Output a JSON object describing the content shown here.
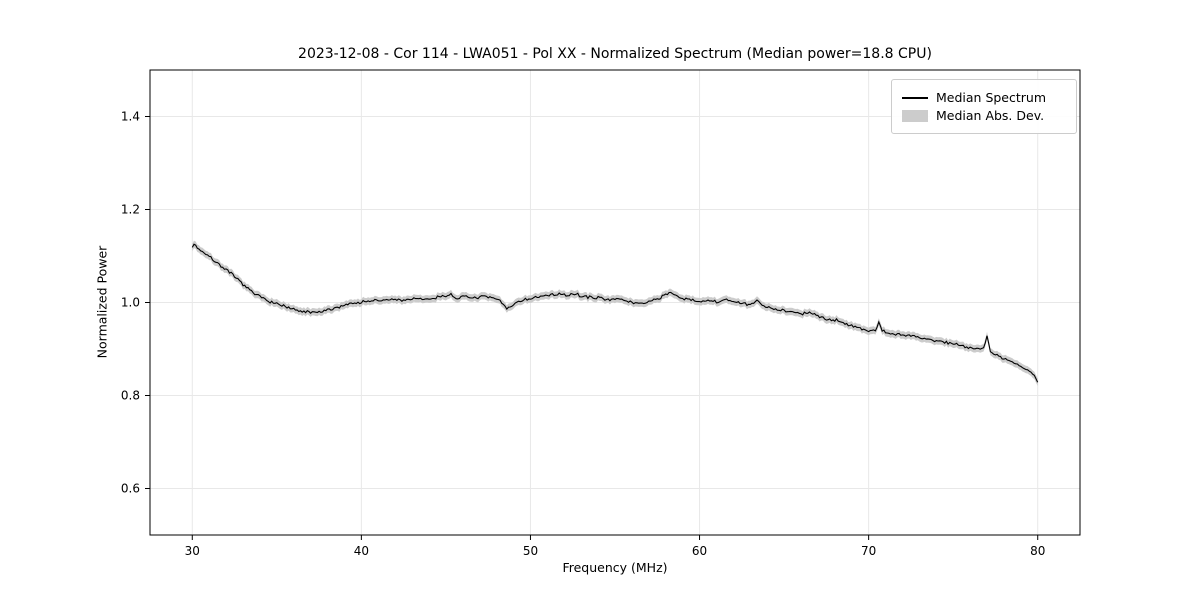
{
  "chart_data": {
    "type": "line",
    "title": "2023-12-08 - Cor 114 - LWA051 - Pol XX - Normalized Spectrum (Median power=18.8 CPU)",
    "xlabel": "Frequency (MHz)",
    "ylabel": "Normalized Power",
    "xlim": [
      27.5,
      82.5
    ],
    "ylim": [
      0.5,
      1.5
    ],
    "grid": true,
    "legend_position": "upper right",
    "legend_entries": [
      "Median Spectrum",
      "Median Abs. Dev."
    ],
    "xticks": [
      {
        "v": 30,
        "label": "30"
      },
      {
        "v": 40,
        "label": "40"
      },
      {
        "v": 50,
        "label": "50"
      },
      {
        "v": 60,
        "label": "60"
      },
      {
        "v": 70,
        "label": "70"
      },
      {
        "v": 80,
        "label": "80"
      }
    ],
    "yticks": [
      {
        "v": 0.6,
        "label": "0.6"
      },
      {
        "v": 0.8,
        "label": "0.8"
      },
      {
        "v": 1.0,
        "label": "1.0"
      },
      {
        "v": 1.2,
        "label": "1.2"
      },
      {
        "v": 1.4,
        "label": "1.4"
      }
    ],
    "colors": {
      "line": "#000000",
      "band": "#cccccc",
      "grid": "#e8e8e8",
      "axes": "#000000",
      "tick": "#000000"
    },
    "noise_amplitude": 0.005,
    "noise_seed": 7,
    "sample_step": 0.1,
    "band_halfwidth": 0.008,
    "series": [
      {
        "name": "Median Spectrum",
        "points": [
          [
            30.0,
            1.12
          ],
          [
            30.15,
            1.127
          ],
          [
            30.3,
            1.118
          ],
          [
            30.5,
            1.112
          ],
          [
            30.8,
            1.105
          ],
          [
            31.0,
            1.098
          ],
          [
            31.3,
            1.09
          ],
          [
            31.6,
            1.082
          ],
          [
            32.0,
            1.07
          ],
          [
            32.4,
            1.058
          ],
          [
            32.8,
            1.046
          ],
          [
            33.1,
            1.036
          ],
          [
            33.4,
            1.026
          ],
          [
            33.7,
            1.018
          ],
          [
            34.0,
            1.012
          ],
          [
            34.3,
            1.008
          ],
          [
            34.6,
            1.003
          ],
          [
            35.0,
            0.997
          ],
          [
            35.4,
            0.992
          ],
          [
            35.8,
            0.987
          ],
          [
            36.2,
            0.982
          ],
          [
            36.6,
            0.98
          ],
          [
            37.0,
            0.978
          ],
          [
            37.4,
            0.979
          ],
          [
            37.8,
            0.981
          ],
          [
            38.2,
            0.985
          ],
          [
            38.6,
            0.99
          ],
          [
            39.0,
            0.995
          ],
          [
            39.4,
            0.998
          ],
          [
            39.8,
            1.0
          ],
          [
            40.2,
            1.002
          ],
          [
            40.6,
            1.004
          ],
          [
            41.0,
            1.003
          ],
          [
            41.5,
            1.006
          ],
          [
            42.0,
            1.006
          ],
          [
            42.5,
            1.005
          ],
          [
            43.0,
            1.008
          ],
          [
            43.5,
            1.006
          ],
          [
            44.0,
            1.008
          ],
          [
            44.5,
            1.011
          ],
          [
            45.0,
            1.015
          ],
          [
            45.3,
            1.017
          ],
          [
            45.6,
            1.01
          ],
          [
            46.0,
            1.012
          ],
          [
            46.5,
            1.01
          ],
          [
            47.0,
            1.012
          ],
          [
            47.5,
            1.011
          ],
          [
            48.0,
            1.007
          ],
          [
            48.3,
            1.0
          ],
          [
            48.6,
            0.987
          ],
          [
            48.9,
            0.993
          ],
          [
            49.2,
            1.001
          ],
          [
            49.6,
            1.006
          ],
          [
            50.0,
            1.008
          ],
          [
            50.5,
            1.012
          ],
          [
            51.0,
            1.015
          ],
          [
            51.5,
            1.018
          ],
          [
            52.0,
            1.015
          ],
          [
            52.4,
            1.018
          ],
          [
            52.8,
            1.016
          ],
          [
            53.2,
            1.013
          ],
          [
            53.6,
            1.011
          ],
          [
            54.0,
            1.01
          ],
          [
            54.5,
            1.008
          ],
          [
            55.0,
            1.008
          ],
          [
            55.5,
            1.004
          ],
          [
            56.0,
            1.0
          ],
          [
            56.5,
            0.998
          ],
          [
            57.0,
            1.002
          ],
          [
            57.5,
            1.008
          ],
          [
            58.0,
            1.017
          ],
          [
            58.3,
            1.02
          ],
          [
            58.7,
            1.012
          ],
          [
            59.0,
            1.008
          ],
          [
            59.5,
            1.005
          ],
          [
            60.0,
            1.003
          ],
          [
            60.5,
            1.004
          ],
          [
            61.0,
            1.0
          ],
          [
            61.5,
            1.006
          ],
          [
            62.0,
            1.003
          ],
          [
            62.5,
            0.998
          ],
          [
            63.0,
            0.994
          ],
          [
            63.4,
            1.004
          ],
          [
            63.7,
            0.994
          ],
          [
            64.0,
            0.99
          ],
          [
            64.5,
            0.986
          ],
          [
            65.0,
            0.983
          ],
          [
            65.5,
            0.98
          ],
          [
            66.0,
            0.975
          ],
          [
            66.4,
            0.978
          ],
          [
            66.8,
            0.973
          ],
          [
            67.2,
            0.969
          ],
          [
            67.6,
            0.965
          ],
          [
            68.0,
            0.962
          ],
          [
            68.5,
            0.957
          ],
          [
            69.0,
            0.951
          ],
          [
            69.5,
            0.945
          ],
          [
            70.0,
            0.938
          ],
          [
            70.4,
            0.941
          ],
          [
            70.6,
            0.957
          ],
          [
            70.8,
            0.94
          ],
          [
            71.2,
            0.934
          ],
          [
            71.6,
            0.932
          ],
          [
            72.0,
            0.93
          ],
          [
            72.5,
            0.928
          ],
          [
            73.0,
            0.925
          ],
          [
            73.5,
            0.921
          ],
          [
            74.0,
            0.918
          ],
          [
            74.5,
            0.915
          ],
          [
            75.0,
            0.911
          ],
          [
            75.5,
            0.908
          ],
          [
            76.0,
            0.904
          ],
          [
            76.5,
            0.899
          ],
          [
            76.8,
            0.904
          ],
          [
            77.0,
            0.927
          ],
          [
            77.2,
            0.894
          ],
          [
            77.6,
            0.887
          ],
          [
            78.0,
            0.88
          ],
          [
            78.4,
            0.873
          ],
          [
            78.8,
            0.866
          ],
          [
            79.2,
            0.858
          ],
          [
            79.6,
            0.849
          ],
          [
            79.85,
            0.842
          ],
          [
            80.0,
            0.83
          ]
        ]
      }
    ]
  }
}
